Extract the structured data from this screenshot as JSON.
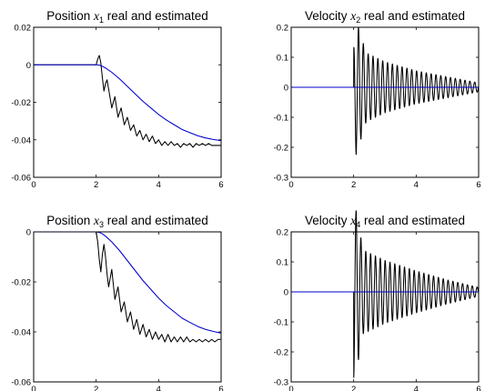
{
  "chart_data": [
    {
      "type": "line",
      "title": {
        "prefix": "Position ",
        "var": "x",
        "sub": "1",
        "suffix": " real and estimated"
      },
      "xlim": [
        0,
        6
      ],
      "ylim": [
        -0.06,
        0.02
      ],
      "xticks": [
        0,
        2,
        4,
        6
      ],
      "xtick_labels": [
        "0",
        "2",
        "4",
        "6"
      ],
      "yticks": [
        -0.06,
        -0.04,
        -0.02,
        0,
        0.02
      ],
      "ytick_labels": [
        "-0.06",
        "-0.04",
        "-0.02",
        "0",
        "0.02"
      ],
      "grid": false,
      "series": [
        {
          "color": "#000000",
          "x": [
            0,
            2.0,
            2.05,
            2.1,
            2.15,
            2.2,
            2.25,
            2.3,
            2.35,
            2.4,
            2.5,
            2.6,
            2.7,
            2.8,
            2.9,
            3.0,
            3.1,
            3.2,
            3.3,
            3.4,
            3.5,
            3.6,
            3.7,
            3.8,
            3.9,
            4.0,
            4.1,
            4.2,
            4.3,
            4.4,
            4.5,
            4.6,
            4.7,
            4.8,
            4.9,
            5.0,
            5.1,
            5.2,
            5.3,
            5.4,
            5.5,
            5.6,
            5.7,
            5.8,
            5.9,
            6.0
          ],
          "y": [
            0,
            0,
            0.003,
            0.005,
            0.001,
            -0.007,
            -0.014,
            -0.01,
            -0.008,
            -0.013,
            -0.023,
            -0.017,
            -0.028,
            -0.023,
            -0.032,
            -0.028,
            -0.035,
            -0.032,
            -0.038,
            -0.035,
            -0.04,
            -0.037,
            -0.041,
            -0.038,
            -0.042,
            -0.04,
            -0.043,
            -0.041,
            -0.043,
            -0.041,
            -0.043,
            -0.042,
            -0.044,
            -0.042,
            -0.043,
            -0.042,
            -0.044,
            -0.042,
            -0.043,
            -0.042,
            -0.043,
            -0.042,
            -0.043,
            -0.043,
            -0.043,
            -0.043
          ]
        },
        {
          "color": "#0000cc",
          "x": [
            0,
            2.0,
            2.1,
            2.2,
            2.3,
            2.5,
            2.75,
            3.0,
            3.25,
            3.5,
            3.75,
            4.0,
            4.25,
            4.5,
            4.75,
            5.0,
            5.25,
            5.5,
            5.75,
            6.0
          ],
          "y": [
            0,
            0,
            -0.0002,
            -0.0008,
            -0.0017,
            -0.004,
            -0.0075,
            -0.0115,
            -0.0155,
            -0.0195,
            -0.023,
            -0.0265,
            -0.0295,
            -0.032,
            -0.0345,
            -0.0362,
            -0.0378,
            -0.039,
            -0.0398,
            -0.0405
          ]
        }
      ]
    },
    {
      "type": "line",
      "title": {
        "prefix": "Velocity ",
        "var": "x",
        "sub": "2",
        "suffix": " real and estimated"
      },
      "xlim": [
        0,
        6
      ],
      "ylim": [
        -0.3,
        0.2
      ],
      "xticks": [
        0,
        2,
        4,
        6
      ],
      "xtick_labels": [
        "0",
        "2",
        "4",
        "6"
      ],
      "yticks": [
        -0.3,
        -0.2,
        -0.1,
        0,
        0.1,
        0.2
      ],
      "ytick_labels": [
        "-0.3",
        "-0.2",
        "-0.1",
        "0",
        "0.1",
        "0.2"
      ],
      "grid": false,
      "oscillation": {
        "t0": 2.0,
        "period": 0.155,
        "phase": "sin",
        "amplitude_points": [
          [
            0.0,
            0.13
          ],
          [
            0.08,
            0.225
          ],
          [
            0.4,
            0.115
          ],
          [
            1.0,
            0.085
          ],
          [
            2.0,
            0.055
          ],
          [
            3.0,
            0.035
          ],
          [
            4.0,
            0.015
          ]
        ]
      },
      "series": [
        {
          "color": "#000000",
          "x": [
            0,
            2.0
          ],
          "y": [
            0,
            0
          ]
        },
        {
          "color": "#0000cc",
          "x": [
            0,
            6.0
          ],
          "y": [
            0,
            0
          ]
        }
      ]
    },
    {
      "type": "line",
      "title": {
        "prefix": "Position ",
        "var": "x",
        "sub": "3",
        "suffix": " real and estimated"
      },
      "xlim": [
        0,
        6
      ],
      "ylim": [
        -0.06,
        0
      ],
      "xticks": [
        0,
        2,
        4,
        6
      ],
      "xtick_labels": [
        "0",
        "2",
        "4",
        "6"
      ],
      "yticks": [
        -0.06,
        -0.04,
        -0.02,
        0
      ],
      "ytick_labels": [
        "-0.06",
        "-0.04",
        "-0.02",
        "0"
      ],
      "grid": false,
      "series": [
        {
          "color": "#000000",
          "x": [
            0,
            2.0,
            2.05,
            2.1,
            2.15,
            2.2,
            2.25,
            2.3,
            2.35,
            2.4,
            2.5,
            2.6,
            2.7,
            2.8,
            2.9,
            3.0,
            3.1,
            3.2,
            3.3,
            3.4,
            3.5,
            3.6,
            3.7,
            3.8,
            3.9,
            4.0,
            4.1,
            4.2,
            4.3,
            4.4,
            4.5,
            4.6,
            4.7,
            4.8,
            4.9,
            5.0,
            5.1,
            5.2,
            5.3,
            5.4,
            5.5,
            5.6,
            5.7,
            5.8,
            5.9,
            6.0
          ],
          "y": [
            0,
            0,
            -0.004,
            -0.011,
            -0.016,
            -0.009,
            -0.005,
            -0.01,
            -0.017,
            -0.022,
            -0.015,
            -0.027,
            -0.022,
            -0.032,
            -0.028,
            -0.036,
            -0.032,
            -0.039,
            -0.035,
            -0.041,
            -0.037,
            -0.042,
            -0.039,
            -0.043,
            -0.04,
            -0.043,
            -0.041,
            -0.044,
            -0.041,
            -0.044,
            -0.042,
            -0.044,
            -0.042,
            -0.044,
            -0.042,
            -0.044,
            -0.043,
            -0.044,
            -0.043,
            -0.044,
            -0.043,
            -0.044,
            -0.043,
            -0.044,
            -0.043,
            -0.043
          ]
        },
        {
          "color": "#0000cc",
          "x": [
            0,
            2.0,
            2.1,
            2.2,
            2.3,
            2.5,
            2.75,
            3.0,
            3.25,
            3.5,
            3.75,
            4.0,
            4.25,
            4.5,
            4.75,
            5.0,
            5.25,
            5.5,
            5.75,
            6.0
          ],
          "y": [
            0,
            0,
            -0.0002,
            -0.0008,
            -0.0017,
            -0.004,
            -0.0075,
            -0.0115,
            -0.0155,
            -0.0195,
            -0.023,
            -0.0265,
            -0.0295,
            -0.032,
            -0.0345,
            -0.0362,
            -0.0378,
            -0.039,
            -0.0398,
            -0.0405
          ]
        }
      ]
    },
    {
      "type": "line",
      "title": {
        "prefix": "Velocity ",
        "var": "x",
        "sub": "4",
        "suffix": " real and estimated"
      },
      "xlim": [
        0,
        6
      ],
      "ylim": [
        -0.3,
        0.2
      ],
      "xticks": [
        0,
        2,
        4,
        6
      ],
      "xtick_labels": [
        "0",
        "2",
        "4",
        "6"
      ],
      "yticks": [
        -0.3,
        -0.2,
        -0.1,
        0,
        0.1,
        0.2
      ],
      "ytick_labels": [
        "-0.3",
        "-0.2",
        "-0.1",
        "0",
        "0.1",
        "0.2"
      ],
      "grid": false,
      "oscillation": {
        "t0": 2.0,
        "period": 0.155,
        "phase": "negsin",
        "amplitude_points": [
          [
            0.0,
            0.29
          ],
          [
            0.08,
            0.27
          ],
          [
            0.3,
            0.14
          ],
          [
            1.0,
            0.105
          ],
          [
            2.0,
            0.07
          ],
          [
            3.0,
            0.04
          ],
          [
            4.0,
            0.015
          ]
        ]
      },
      "series": [
        {
          "color": "#000000",
          "x": [
            0,
            2.0
          ],
          "y": [
            0,
            0
          ]
        },
        {
          "color": "#0000cc",
          "x": [
            0,
            6.0
          ],
          "y": [
            0,
            0
          ]
        }
      ]
    }
  ]
}
